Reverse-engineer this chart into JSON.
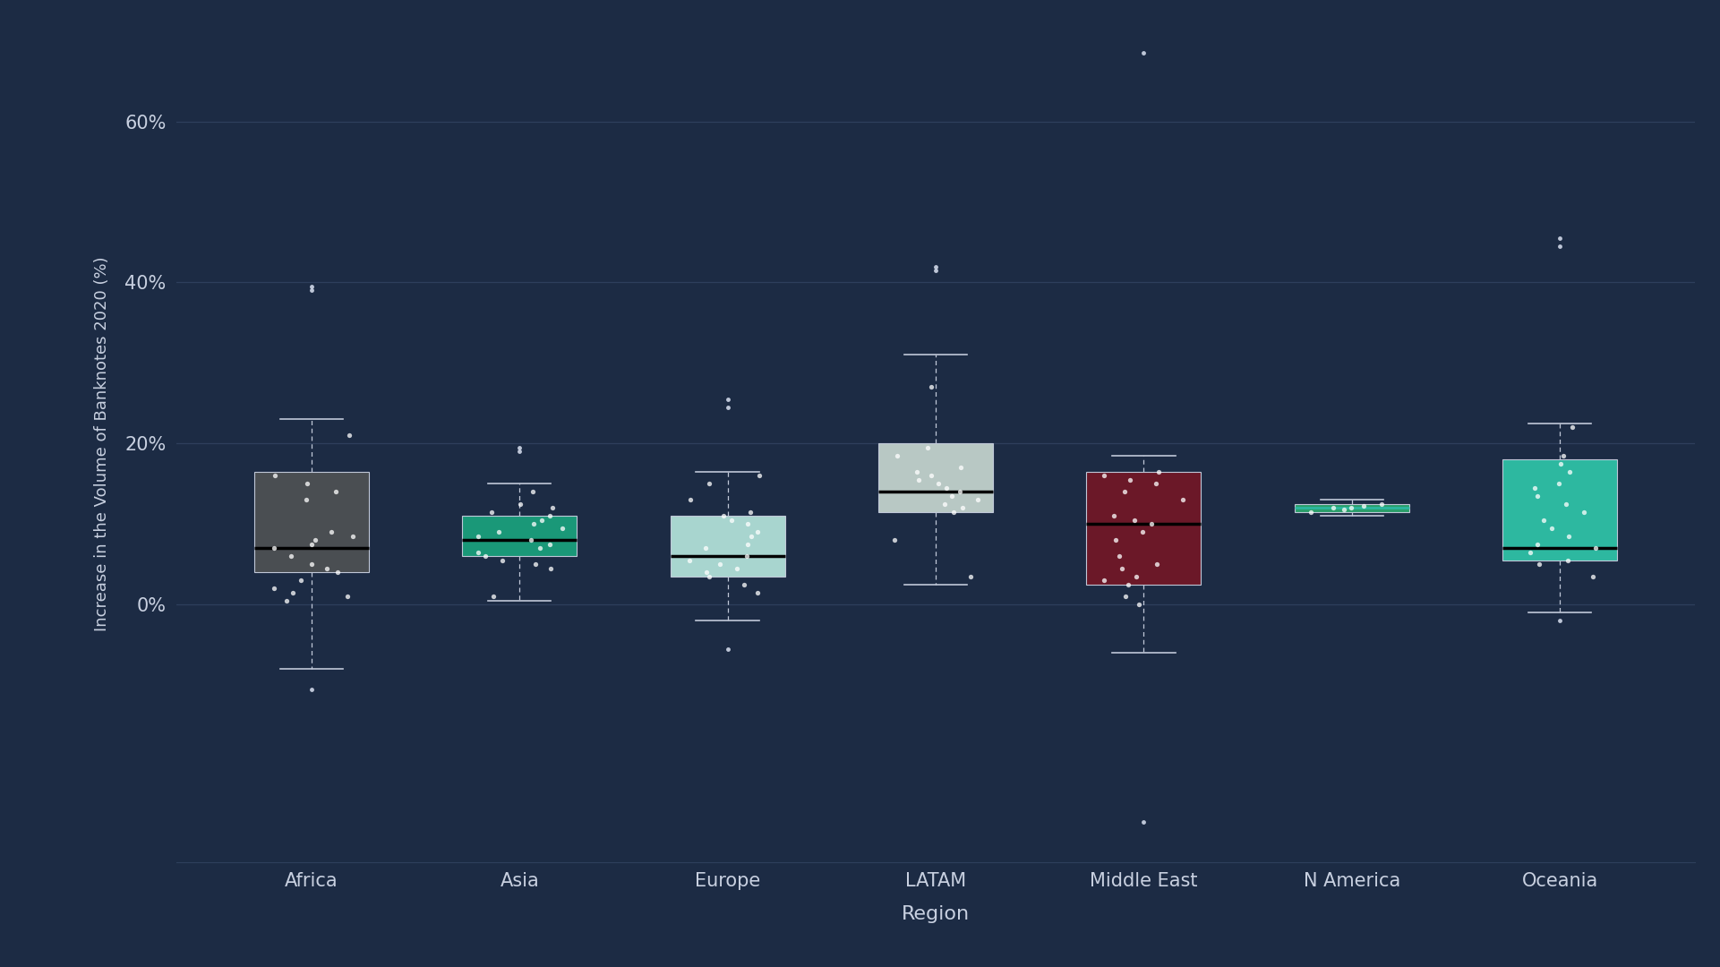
{
  "regions": [
    "Africa",
    "Asia",
    "Europe",
    "LATAM",
    "Middle East",
    "N America",
    "Oceania"
  ],
  "box_colors": [
    "#4a4e52",
    "#1a9878",
    "#a8d5cf",
    "#b8c8c4",
    "#6b1828",
    "#2a9e6a",
    "#2db8a0"
  ],
  "median_line_color": "#000000",
  "n_america_median_color": "#2db8a0",
  "whisker_color": "#c0c8d8",
  "flier_color": "#d0d8e8",
  "jitter_color": "#ffffff",
  "background_color": "#1c2b44",
  "plot_area_color": "#1c2b44",
  "grid_color": "#2e3f5c",
  "tick_color": "#c8d0e0",
  "label_color": "#c8d0e0",
  "ylabel": "Increase in the Volume of Banknotes 2020 (%)",
  "xlabel": "Region",
  "ylim": [
    -32,
    72
  ],
  "ytick_vals": [
    0,
    20,
    40,
    60
  ],
  "box_data": {
    "Africa": {
      "q1": 4.0,
      "median": 7.0,
      "q3": 16.5,
      "whisker_low": -8.0,
      "whisker_high": 23.0,
      "outliers": [
        39.0,
        39.5
      ],
      "lower_out": [
        -10.5
      ],
      "jitter": [
        16.0,
        14.0,
        13.0,
        9.0,
        8.5,
        8.0,
        7.5,
        7.0,
        6.0,
        5.0,
        4.5,
        4.0,
        3.0,
        2.0,
        1.5,
        1.0,
        0.5,
        15.0,
        21.0
      ]
    },
    "Asia": {
      "q1": 6.0,
      "median": 8.0,
      "q3": 11.0,
      "whisker_low": 0.5,
      "whisker_high": 15.0,
      "outliers": [
        19.0,
        19.5
      ],
      "lower_out": [],
      "jitter": [
        14.0,
        12.5,
        12.0,
        11.5,
        11.0,
        10.5,
        10.0,
        9.5,
        9.0,
        8.5,
        8.0,
        7.5,
        7.0,
        6.5,
        6.0,
        5.5,
        5.0,
        4.5,
        1.0
      ]
    },
    "Europe": {
      "q1": 3.5,
      "median": 6.0,
      "q3": 11.0,
      "whisker_low": -2.0,
      "whisker_high": 16.5,
      "outliers": [
        24.5,
        25.5
      ],
      "lower_out": [
        -5.5
      ],
      "jitter": [
        16.0,
        15.0,
        13.0,
        11.5,
        11.0,
        10.5,
        10.0,
        9.0,
        8.5,
        7.5,
        7.0,
        6.0,
        5.5,
        5.0,
        4.5,
        4.0,
        3.5,
        2.5,
        1.5
      ]
    },
    "LATAM": {
      "q1": 11.5,
      "median": 14.0,
      "q3": 20.0,
      "whisker_low": 2.5,
      "whisker_high": 31.0,
      "outliers": [
        41.5,
        42.0
      ],
      "lower_out": [],
      "jitter": [
        19.5,
        18.5,
        17.0,
        16.5,
        16.0,
        15.5,
        15.0,
        14.5,
        14.0,
        13.5,
        13.0,
        12.5,
        12.0,
        11.5,
        8.0,
        3.5,
        27.0
      ]
    },
    "Middle East": {
      "q1": 2.5,
      "median": 10.0,
      "q3": 16.5,
      "whisker_low": -6.0,
      "whisker_high": 18.5,
      "outliers": [
        68.5
      ],
      "lower_out": [
        -27.0
      ],
      "jitter": [
        16.5,
        16.0,
        15.5,
        15.0,
        14.0,
        13.0,
        11.0,
        10.5,
        10.0,
        9.0,
        8.0,
        6.0,
        5.0,
        4.5,
        3.5,
        3.0,
        2.5,
        1.0,
        0.0
      ]
    },
    "N America": {
      "q1": 11.5,
      "median": 12.0,
      "q3": 12.5,
      "whisker_low": 11.0,
      "whisker_high": 13.0,
      "outliers": [],
      "lower_out": [],
      "jitter": [
        11.5,
        12.0,
        12.5,
        11.8,
        12.2,
        12.0
      ]
    },
    "Oceania": {
      "q1": 5.5,
      "median": 7.0,
      "q3": 18.0,
      "whisker_low": -1.0,
      "whisker_high": 22.5,
      "outliers": [
        44.5,
        45.5
      ],
      "lower_out": [
        -2.0
      ],
      "jitter": [
        22.0,
        18.5,
        17.5,
        16.5,
        15.0,
        14.5,
        13.5,
        12.5,
        11.5,
        10.5,
        9.5,
        8.5,
        7.5,
        7.0,
        6.5,
        5.5,
        5.0,
        3.5
      ]
    }
  },
  "box_width": 0.55,
  "figsize": [
    19.21,
    10.8
  ],
  "dpi": 100
}
